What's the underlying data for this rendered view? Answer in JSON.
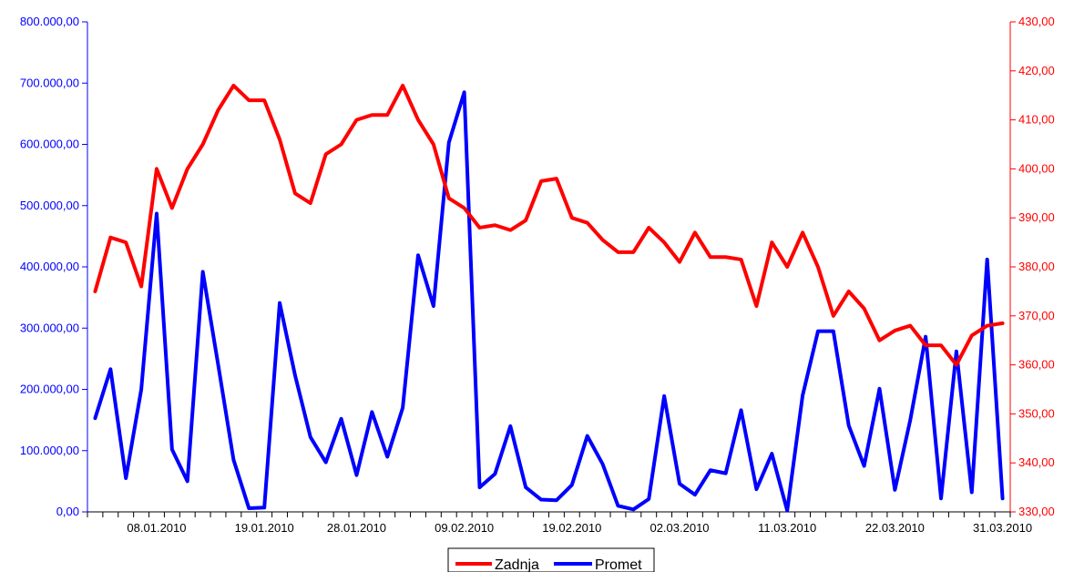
{
  "chart_data": {
    "type": "line",
    "title": "",
    "xlabel": "",
    "ylabel_left": "",
    "ylabel_right": "",
    "grid": false,
    "legend_position": "bottom",
    "x_tick_labels": [
      "08.01.2010",
      "19.01.2010",
      "28.01.2010",
      "09.02.2010",
      "19.02.2010",
      "02.03.2010",
      "11.03.2010",
      "22.03.2010",
      "31.03.2010"
    ],
    "x_tick_positions": [
      4,
      11,
      17,
      24,
      31,
      38,
      45,
      52,
      59
    ],
    "y_left": {
      "range": [
        0,
        800000
      ],
      "ticks": [
        0,
        100000,
        200000,
        300000,
        400000,
        500000,
        600000,
        700000,
        800000
      ],
      "tick_labels": [
        "0,00",
        "100.000,00",
        "200.000,00",
        "300.000,00",
        "400.000,00",
        "500.000,00",
        "600.000,00",
        "700.000,00",
        "800.000,00"
      ],
      "color": "#0000ff"
    },
    "y_right": {
      "range": [
        330,
        430
      ],
      "ticks": [
        330,
        340,
        350,
        360,
        370,
        380,
        390,
        400,
        410,
        420,
        430
      ],
      "tick_labels": [
        "330,00",
        "340,00",
        "350,00",
        "360,00",
        "370,00",
        "380,00",
        "390,00",
        "400,00",
        "410,00",
        "420,00",
        "430,00"
      ],
      "color": "#ff0000"
    },
    "series": [
      {
        "name": "Zadnja",
        "axis": "right",
        "color": "#ff0000",
        "values": [
          375,
          386,
          385,
          376,
          400,
          392,
          400,
          405,
          412,
          417,
          414,
          414,
          406,
          395,
          393,
          403,
          405,
          410,
          411,
          411,
          417,
          410,
          405,
          394,
          392,
          388,
          388.5,
          387.5,
          389.5,
          397.5,
          398,
          390,
          389,
          385.5,
          383,
          383,
          388,
          385,
          381,
          387,
          382,
          382,
          381.5,
          372,
          385,
          380,
          387,
          380,
          370,
          375,
          371.5,
          365,
          367,
          368,
          364,
          364,
          360,
          366,
          368,
          368.5
        ]
      },
      {
        "name": "Promet",
        "axis": "left",
        "color": "#0000ff",
        "values": [
          153000,
          233000,
          55000,
          200000,
          487000,
          102000,
          50000,
          392000,
          240000,
          85000,
          6000,
          7000,
          341000,
          223000,
          122000,
          81000,
          152000,
          60000,
          163000,
          90000,
          170000,
          419000,
          336000,
          603000,
          685000,
          40000,
          62000,
          140000,
          40000,
          20000,
          19000,
          44000,
          124000,
          78000,
          10000,
          4000,
          21000,
          189000,
          46000,
          28000,
          68000,
          63000,
          166000,
          37000,
          95000,
          2000,
          190000,
          295000,
          295000,
          141000,
          75000,
          201000,
          36000,
          150000,
          286000,
          22000,
          262000,
          32000,
          412000,
          22000
        ]
      }
    ]
  }
}
